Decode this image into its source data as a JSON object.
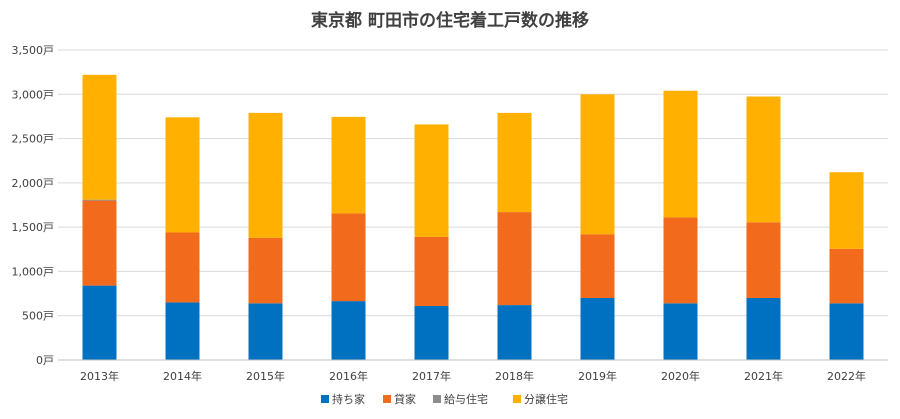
{
  "chart_data": {
    "type": "bar",
    "stacked": true,
    "title": "東京都 町田市の住宅着工戸数の推移",
    "xlabel": "",
    "ylabel": "",
    "categories": [
      "2013年",
      "2014年",
      "2015年",
      "2016年",
      "2017年",
      "2018年",
      "2019年",
      "2020年",
      "2021年",
      "2022年"
    ],
    "ylim": [
      0,
      3500
    ],
    "yticks": [
      0,
      500,
      1000,
      1500,
      2000,
      2500,
      3000,
      3500
    ],
    "ytick_labels": [
      "0戸",
      "500戸",
      "1,000戸",
      "1,500戸",
      "2,000戸",
      "2,500戸",
      "3,000戸",
      "3,500戸"
    ],
    "grid": true,
    "legend_position": "bottom",
    "series": [
      {
        "name": "持ち家",
        "color": "#0070C0",
        "values": [
          840,
          650,
          640,
          665,
          610,
          620,
          700,
          640,
          700,
          640
        ]
      },
      {
        "name": "貸家",
        "color": "#F26A1B",
        "values": [
          960,
          790,
          740,
          990,
          780,
          1050,
          720,
          970,
          855,
          615
        ]
      },
      {
        "name": "給与住宅",
        "color": "#8C8C8C",
        "values": [
          10,
          0,
          0,
          0,
          0,
          0,
          0,
          0,
          0,
          0
        ]
      },
      {
        "name": "分譲住宅",
        "color": "#FFB000",
        "values": [
          1410,
          1300,
          1410,
          1090,
          1270,
          1120,
          1580,
          1430,
          1420,
          865
        ]
      }
    ]
  }
}
